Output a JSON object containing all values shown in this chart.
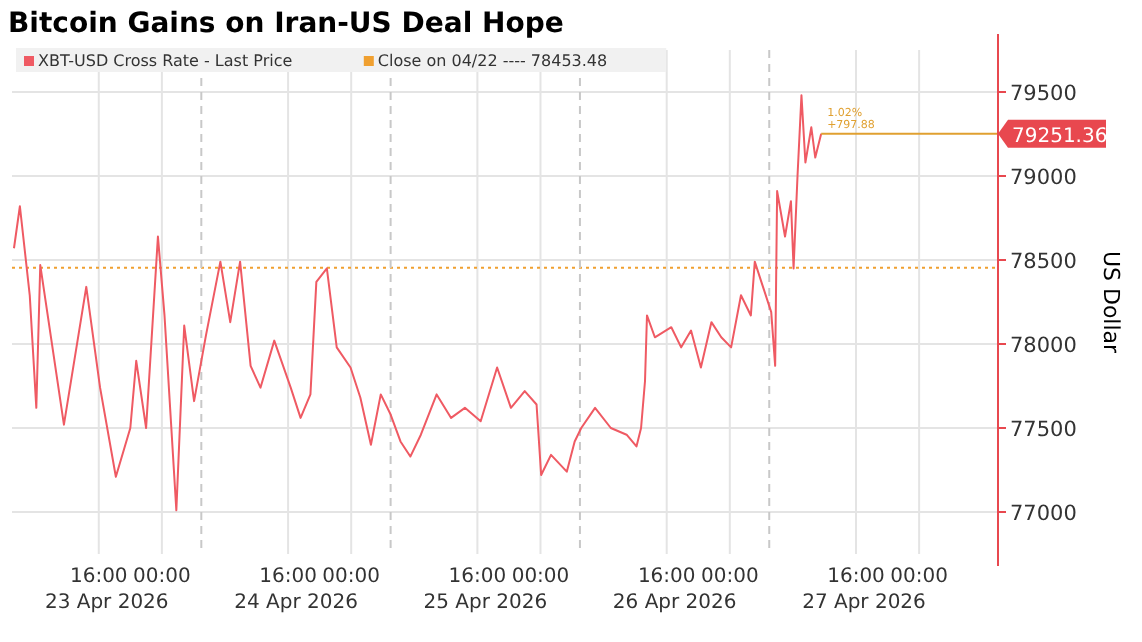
{
  "chart_data": {
    "type": "line",
    "title": "Bitcoin Gains on Iran-US Deal Hope",
    "ylabel": "US Dollar",
    "xlim": [
      "2026-04-23T05:00",
      "2026-04-28T10:00"
    ],
    "xticks": [
      {
        "value": "2026-04-23T16:00",
        "label": "16:00\n23 Apr 2026"
      },
      {
        "value": "2026-04-24T00:00",
        "label": "00:00"
      },
      {
        "value": "2026-04-24T16:00",
        "label": "16:00\n24 Apr 2026"
      },
      {
        "value": "2026-04-25T00:00",
        "label": "00:00"
      },
      {
        "value": "2026-04-25T16:00",
        "label": "16:00\n25 Apr 2026"
      },
      {
        "value": "2026-04-26T00:00",
        "label": "00:00"
      },
      {
        "value": "2026-04-26T16:00",
        "label": "16:00\n26 Apr 2026"
      },
      {
        "value": "2026-04-27T00:00",
        "label": "00:00"
      },
      {
        "value": "2026-04-27T16:00",
        "label": "16:00\n27 Apr 2026"
      },
      {
        "value": "2026-04-28T00:00",
        "label": "00:00"
      }
    ],
    "ylim": [
      76750,
      79750
    ],
    "yticks": [
      77000,
      77500,
      78000,
      78500,
      79000,
      79500
    ],
    "grid": true,
    "legend": "top left",
    "line_style": "solid",
    "marker": "none",
    "x": [
      "2026-04-23T05:15",
      "2026-04-23T06:00",
      "2026-04-23T07:15",
      "2026-04-23T08:05",
      "2026-04-23T08:35",
      "2026-04-23T11:35",
      "2026-04-23T14:25",
      "2026-04-23T16:10",
      "2026-04-23T18:10",
      "2026-04-23T20:00",
      "2026-04-23T20:45",
      "2026-04-23T22:00",
      "2026-04-23T23:30",
      "2026-04-24T00:20",
      "2026-04-24T01:50",
      "2026-04-24T02:50",
      "2026-04-24T04:05",
      "2026-04-24T05:35",
      "2026-04-24T07:25",
      "2026-04-24T08:40",
      "2026-04-24T09:55",
      "2026-04-24T11:15",
      "2026-04-24T12:30",
      "2026-04-24T14:15",
      "2026-04-24T16:20",
      "2026-04-24T17:35",
      "2026-04-24T18:50",
      "2026-04-24T19:35",
      "2026-04-24T20:55",
      "2026-04-24T22:10",
      "2026-04-24T23:55",
      "2026-04-25T01:10",
      "2026-04-25T02:30",
      "2026-04-25T03:45",
      "2026-04-25T05:00",
      "2026-04-25T06:15",
      "2026-04-25T07:30",
      "2026-04-25T08:50",
      "2026-04-25T10:50",
      "2026-04-25T12:40",
      "2026-04-25T14:25",
      "2026-04-25T16:25",
      "2026-04-25T18:30",
      "2026-04-25T20:15",
      "2026-04-25T22:00",
      "2026-04-25T23:30",
      "2026-04-26T00:05",
      "2026-04-26T01:20",
      "2026-04-26T03:20",
      "2026-04-26T04:20",
      "2026-04-26T05:10",
      "2026-04-26T06:55",
      "2026-04-26T08:55",
      "2026-04-26T10:55",
      "2026-04-26T12:10",
      "2026-04-26T12:45",
      "2026-04-26T13:15",
      "2026-04-26T13:30",
      "2026-04-26T14:30",
      "2026-04-26T16:35",
      "2026-04-26T17:50",
      "2026-04-26T19:05",
      "2026-04-26T20:20",
      "2026-04-26T21:40",
      "2026-04-26T22:55",
      "2026-04-27T00:10",
      "2026-04-27T01:25",
      "2026-04-27T02:40",
      "2026-04-27T03:10",
      "2026-04-27T04:00",
      "2026-04-27T05:15",
      "2026-04-27T05:45",
      "2026-04-27T06:00",
      "2026-04-27T07:00",
      "2026-04-27T07:45",
      "2026-04-27T08:05",
      "2026-04-27T08:35",
      "2026-04-27T09:05",
      "2026-04-27T09:35",
      "2026-04-27T10:20",
      "2026-04-27T10:50",
      "2026-04-27T11:35"
    ],
    "series": [
      {
        "name": "XBT-USD Cross Rate - Last Price",
        "color": "#ef5a63",
        "values": [
          78570,
          78820,
          78290,
          77620,
          78470,
          77520,
          78340,
          77740,
          77210,
          77500,
          77900,
          77500,
          78640,
          78170,
          77010,
          78110,
          77660,
          78050,
          78490,
          78130,
          78490,
          77870,
          77740,
          78020,
          77740,
          77560,
          77700,
          78370,
          78450,
          77980,
          77860,
          77680,
          77400,
          77700,
          77580,
          77420,
          77330,
          77460,
          77700,
          77560,
          77620,
          77540,
          77860,
          77620,
          77720,
          77640,
          77220,
          77340,
          77240,
          77420,
          77500,
          77620,
          77500,
          77460,
          77390,
          77500,
          77780,
          78170,
          78040,
          78100,
          77980,
          78080,
          77860,
          78130,
          78040,
          77980,
          78290,
          78170,
          78490,
          78370,
          78190,
          77870,
          78910,
          78640,
          78850,
          78450,
          79000,
          79480,
          79080,
          79290,
          79110,
          79251.36
        ]
      }
    ],
    "ref_lines": [
      {
        "axis": "y",
        "value": 78453.48,
        "label": "Close on 04/22 ---- 78453.48",
        "color": "#f0a030",
        "line_style": "dotted"
      },
      {
        "axis": "x",
        "value": "2026-04-24T05:00",
        "color": "#c8c8c8",
        "line_style": "dashed"
      },
      {
        "axis": "x",
        "value": "2026-04-25T05:00",
        "color": "#c8c8c8",
        "line_style": "dashed"
      },
      {
        "axis": "x",
        "value": "2026-04-26T05:00",
        "color": "#c8c8c8",
        "line_style": "dashed"
      },
      {
        "axis": "x",
        "value": "2026-04-27T05:00",
        "color": "#c8c8c8",
        "line_style": "dashed"
      }
    ],
    "annotations": [
      {
        "text": "79251.36",
        "x": "2026-04-27T11:35",
        "y": 79251.36
      },
      {
        "text": "1.02%",
        "x": "2026-04-27T11:35",
        "y": 79251.36
      },
      {
        "text": "+797.88",
        "x": "2026-04-27T11:35",
        "y": 79251.36
      }
    ]
  }
}
